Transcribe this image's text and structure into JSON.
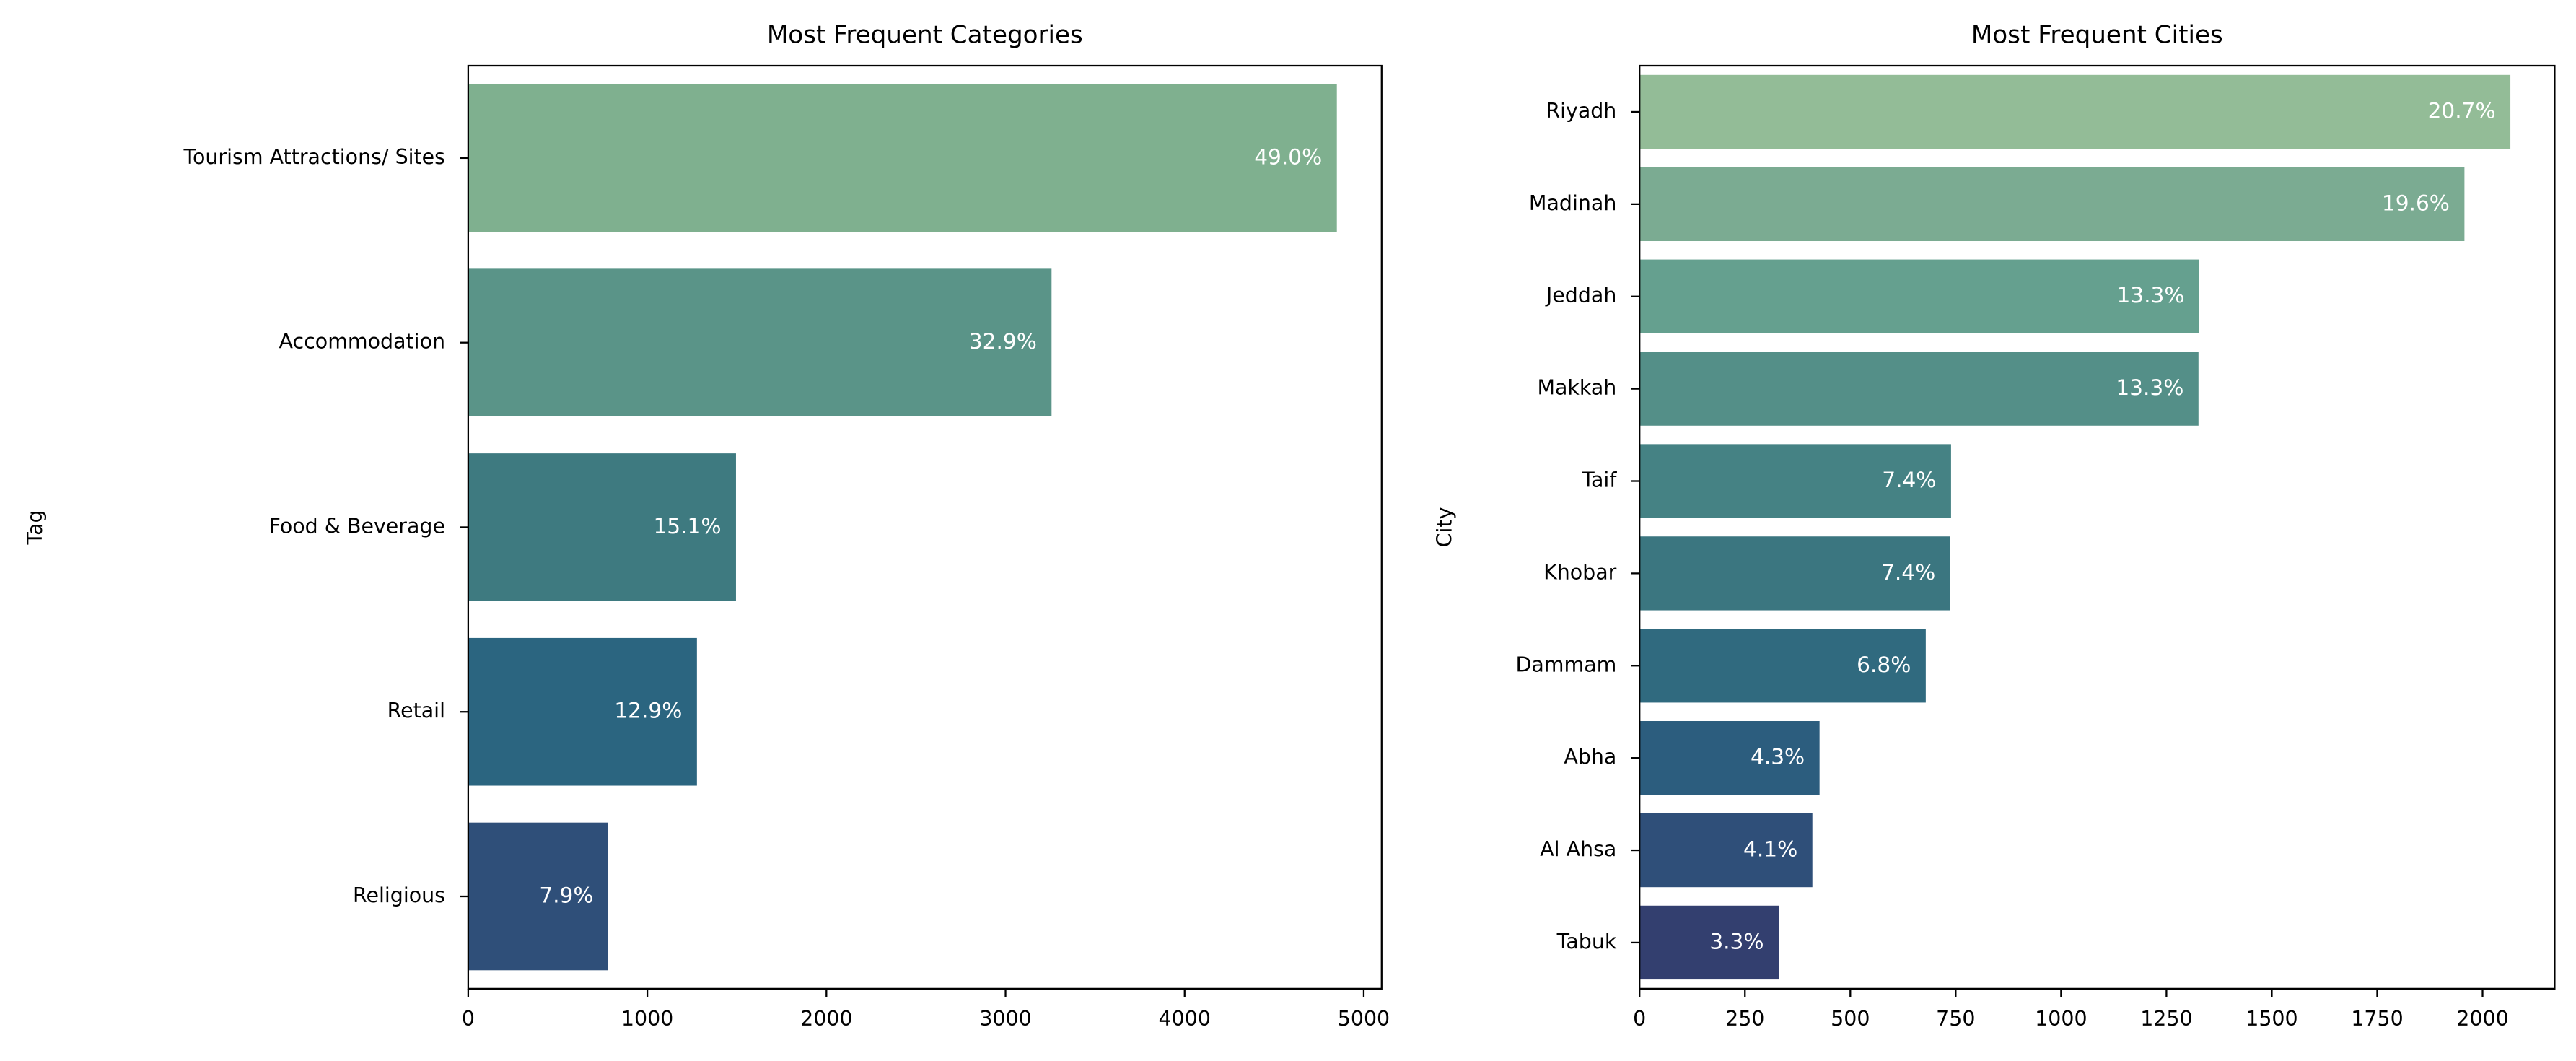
{
  "chart_data": [
    {
      "type": "barh",
      "title": "Most Frequent Categories",
      "ylabel": "Tag",
      "categories": [
        "Tourism Attractions/ Sites",
        "Accommodation",
        "Food & Beverage",
        "Retail",
        "Religious"
      ],
      "values": [
        4850,
        3257,
        1495,
        1277,
        782
      ],
      "bar_labels": [
        "49.0%",
        "32.9%",
        "15.1%",
        "12.9%",
        "7.9%"
      ],
      "colors": [
        "#7fb08f",
        "#5a9488",
        "#3e7a80",
        "#2b6580",
        "#2f4f79"
      ],
      "xlim": [
        0,
        5100
      ],
      "xticks": [
        0,
        1000,
        2000,
        3000,
        4000,
        5000
      ]
    },
    {
      "type": "barh",
      "title": "Most Frequent Cities",
      "ylabel": "City",
      "categories": [
        "Riyadh",
        "Madinah",
        "Jeddah",
        "Makkah",
        "Taif",
        "Khobar",
        "Dammam",
        "Abha",
        "Al Ahsa",
        "Tabuk"
      ],
      "values": [
        2066,
        1957,
        1328,
        1326,
        739,
        737,
        679,
        427,
        410,
        330
      ],
      "bar_labels": [
        "20.7%",
        "19.6%",
        "13.3%",
        "13.3%",
        "7.4%",
        "7.4%",
        "6.8%",
        "4.3%",
        "4.1%",
        "3.3%"
      ],
      "colors": [
        "#93bc97",
        "#7bab92",
        "#65a08f",
        "#548f88",
        "#458284",
        "#3b7680",
        "#306a7f",
        "#2c5d7e",
        "#2f4f79",
        "#333f6f"
      ],
      "xlim": [
        0,
        2171
      ],
      "xticks": [
        0,
        250,
        500,
        750,
        1000,
        1250,
        1500,
        1750,
        2000
      ]
    }
  ]
}
